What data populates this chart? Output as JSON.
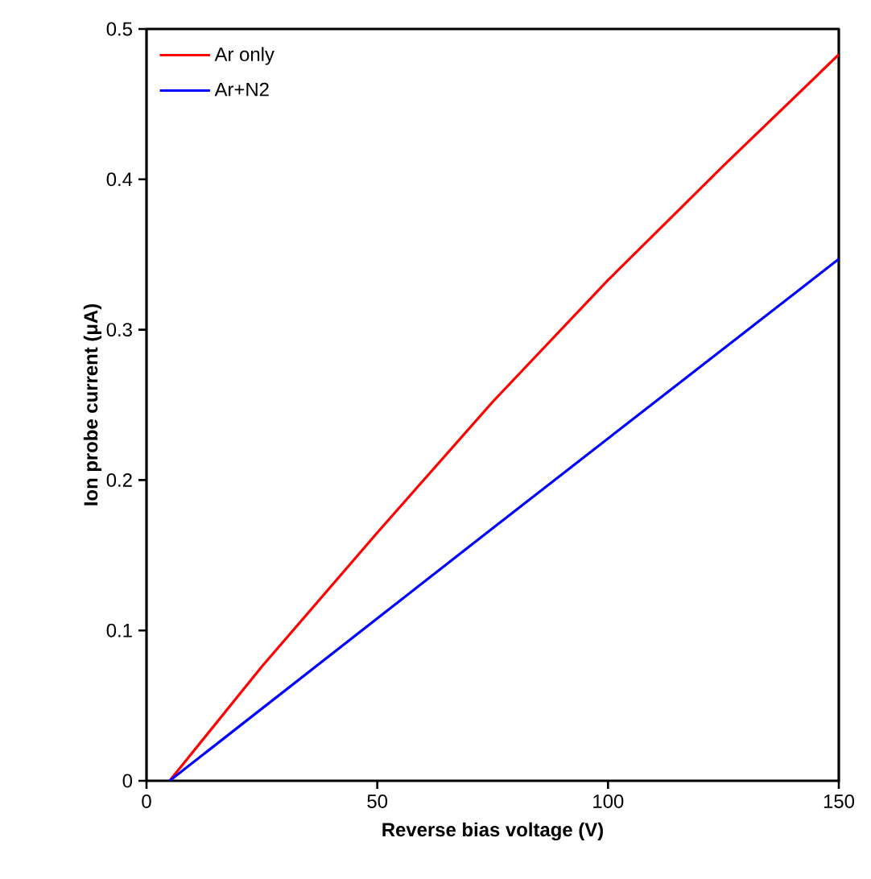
{
  "chart_data": {
    "type": "line",
    "xlabel": "Reverse bias voltage (V)",
    "ylabel": "Ion probe current (μA)",
    "xlim": [
      0,
      150
    ],
    "ylim": [
      0,
      0.5
    ],
    "xticks": [
      0,
      50,
      100,
      150
    ],
    "yticks": [
      0,
      0.1,
      0.2,
      0.3,
      0.4,
      0.5
    ],
    "grid": false,
    "legend": "top left",
    "marker": "none",
    "line_style": "solid",
    "series": [
      {
        "name": "Ar only",
        "color": "#ff0000",
        "x": [
          5,
          25,
          50,
          75,
          100,
          125,
          150
        ],
        "values": [
          0,
          0.076,
          0.165,
          0.252,
          0.333,
          0.409,
          0.483
        ]
      },
      {
        "name": "Ar+N2",
        "color": "#0000ff",
        "x": [
          5,
          75,
          150
        ],
        "values": [
          0,
          0.168,
          0.347
        ]
      }
    ]
  }
}
